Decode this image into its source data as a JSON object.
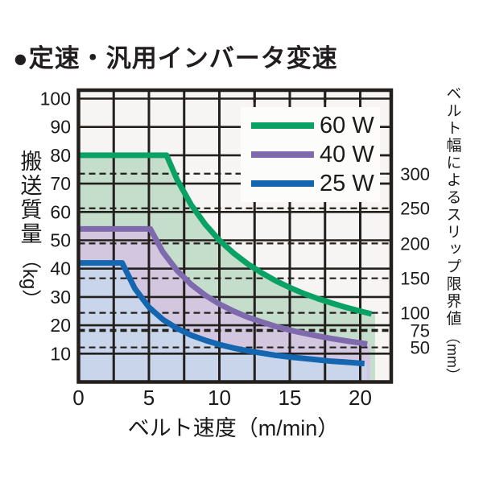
{
  "title": "●定速・汎用インバータ変速",
  "legend": {
    "items": [
      "60 W",
      "40 W",
      "25 W"
    ]
  },
  "colors": {
    "line_black": "#231f1c",
    "text": "#1a1a1a",
    "plot_bg": "#f6f5f3",
    "legend_bg": "#fcfcfb"
  },
  "chart_data": {
    "type": "area",
    "title": "定速・汎用インバータ変速",
    "x_axis": {
      "title": "ベルト速度（m/min）",
      "ticks": [
        0,
        5,
        10,
        15,
        20
      ],
      "range": [
        0,
        22.2
      ],
      "grid_step": 2.5
    },
    "y_axis_left": {
      "title": "搬送質量",
      "unit": "（kg）",
      "ticks": [
        100,
        90,
        80,
        70,
        60,
        50,
        40,
        30,
        20,
        10
      ],
      "range": [
        0,
        103
      ],
      "grid_step": 10
    },
    "y_axis_right": {
      "title": "ベルト幅によるスリップ限界値",
      "unit": "（mm）",
      "ticks": [
        {
          "mm": "300",
          "kg": 73.5,
          "bold": false
        },
        {
          "mm": "250",
          "kg": 61.3,
          "bold": false
        },
        {
          "mm": "200",
          "kg": 48.9,
          "bold": false
        },
        {
          "mm": "150",
          "kg": 36.6,
          "bold": false
        },
        {
          "mm": "100",
          "kg": 24.4,
          "bold": false
        },
        {
          "mm": "75",
          "kg": 18.2,
          "bold": true
        },
        {
          "mm": "50",
          "kg": 12.2,
          "bold": false
        }
      ]
    },
    "series": [
      {
        "label": "60 W",
        "power_w": 60,
        "stroke": "#0aa164",
        "fill": "#c5decb",
        "flat_kg": 80,
        "area_end_x": 21.05,
        "points": [
          [
            0,
            80
          ],
          [
            6.25,
            80
          ],
          [
            7,
            71.4
          ],
          [
            8,
            62.5
          ],
          [
            9,
            55.6
          ],
          [
            10,
            50
          ],
          [
            11,
            45.5
          ],
          [
            12,
            41.7
          ],
          [
            13,
            38.5
          ],
          [
            14,
            35.7
          ],
          [
            15,
            33.3
          ],
          [
            16,
            31.2
          ],
          [
            17,
            29.4
          ],
          [
            18,
            27.8
          ],
          [
            19,
            26.3
          ],
          [
            20,
            25
          ],
          [
            20.8,
            24
          ]
        ]
      },
      {
        "label": "40 W",
        "power_w": 40,
        "stroke": "#7f6aad",
        "fill": "#d3c7e0",
        "flat_kg": 54,
        "area_end_x": 20.7,
        "points": [
          [
            0,
            54
          ],
          [
            5.1,
            54
          ],
          [
            6,
            45.8
          ],
          [
            7,
            39.3
          ],
          [
            8,
            34.4
          ],
          [
            9,
            30.6
          ],
          [
            10,
            27.5
          ],
          [
            11,
            25
          ],
          [
            12,
            22.9
          ],
          [
            13,
            21.2
          ],
          [
            14,
            19.6
          ],
          [
            15,
            18.3
          ],
          [
            16,
            17.2
          ],
          [
            17,
            16.2
          ],
          [
            18,
            15.3
          ],
          [
            19,
            14.5
          ],
          [
            20,
            13.8
          ],
          [
            20.5,
            13.4
          ]
        ]
      },
      {
        "label": "25 W",
        "power_w": 25,
        "stroke": "#1566b0",
        "fill": "#c8d5ea",
        "flat_kg": 42,
        "area_end_x": 20.45,
        "points": [
          [
            0,
            42
          ],
          [
            3.1,
            42
          ],
          [
            4,
            33
          ],
          [
            5,
            26.4
          ],
          [
            6,
            22
          ],
          [
            7,
            18.9
          ],
          [
            8,
            16.5
          ],
          [
            9,
            14.7
          ],
          [
            10,
            13.2
          ],
          [
            11,
            12
          ],
          [
            12,
            11
          ],
          [
            13,
            10.2
          ],
          [
            14,
            9.4
          ],
          [
            15,
            8.8
          ],
          [
            16,
            8.3
          ],
          [
            17,
            7.8
          ],
          [
            18,
            7.3
          ],
          [
            19,
            7
          ],
          [
            20,
            6.6
          ],
          [
            20.3,
            6.5
          ]
        ]
      }
    ],
    "legend_position": "upper right inside plot",
    "grid": true
  }
}
